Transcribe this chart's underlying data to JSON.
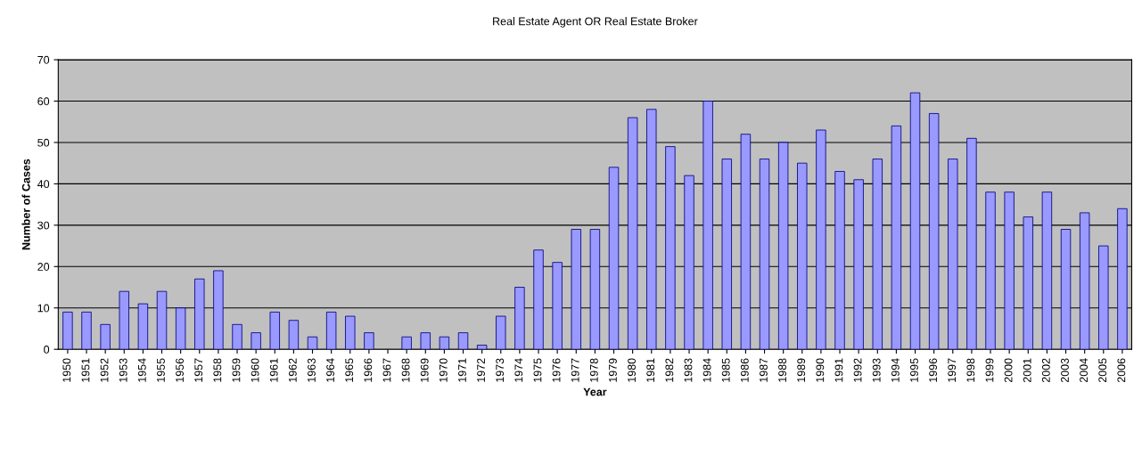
{
  "chart_data": {
    "type": "bar",
    "title": "Real Estate Agent OR Real Estate Broker",
    "xlabel": "Year",
    "ylabel": "Number of Cases",
    "categories": [
      "1950",
      "1951",
      "1952",
      "1953",
      "1954",
      "1955",
      "1956",
      "1957",
      "1958",
      "1959",
      "1960",
      "1961",
      "1962",
      "1963",
      "1964",
      "1965",
      "1966",
      "1967",
      "1968",
      "1969",
      "1970",
      "1971",
      "1972",
      "1973",
      "1974",
      "1975",
      "1976",
      "1977",
      "1978",
      "1979",
      "1980",
      "1981",
      "1982",
      "1983",
      "1984",
      "1985",
      "1986",
      "1987",
      "1988",
      "1989",
      "1990",
      "1991",
      "1992",
      "1993",
      "1994",
      "1995",
      "1996",
      "1997",
      "1998",
      "1999",
      "2000",
      "2001",
      "2002",
      "2003",
      "2004",
      "2005",
      "2006"
    ],
    "values": [
      9,
      9,
      6,
      14,
      11,
      14,
      10,
      17,
      19,
      6,
      4,
      9,
      7,
      3,
      9,
      8,
      4,
      0,
      3,
      4,
      3,
      4,
      1,
      8,
      15,
      24,
      21,
      29,
      29,
      44,
      56,
      58,
      49,
      42,
      60,
      46,
      52,
      46,
      50,
      45,
      53,
      43,
      41,
      46,
      54,
      62,
      57,
      46,
      51,
      38,
      38,
      32,
      38,
      29,
      33,
      25,
      34
    ],
    "color": "#9999ff",
    "ylim": [
      0,
      70
    ],
    "yticks": [
      0,
      10,
      20,
      30,
      40,
      50,
      60,
      70
    ],
    "grid": "y"
  }
}
